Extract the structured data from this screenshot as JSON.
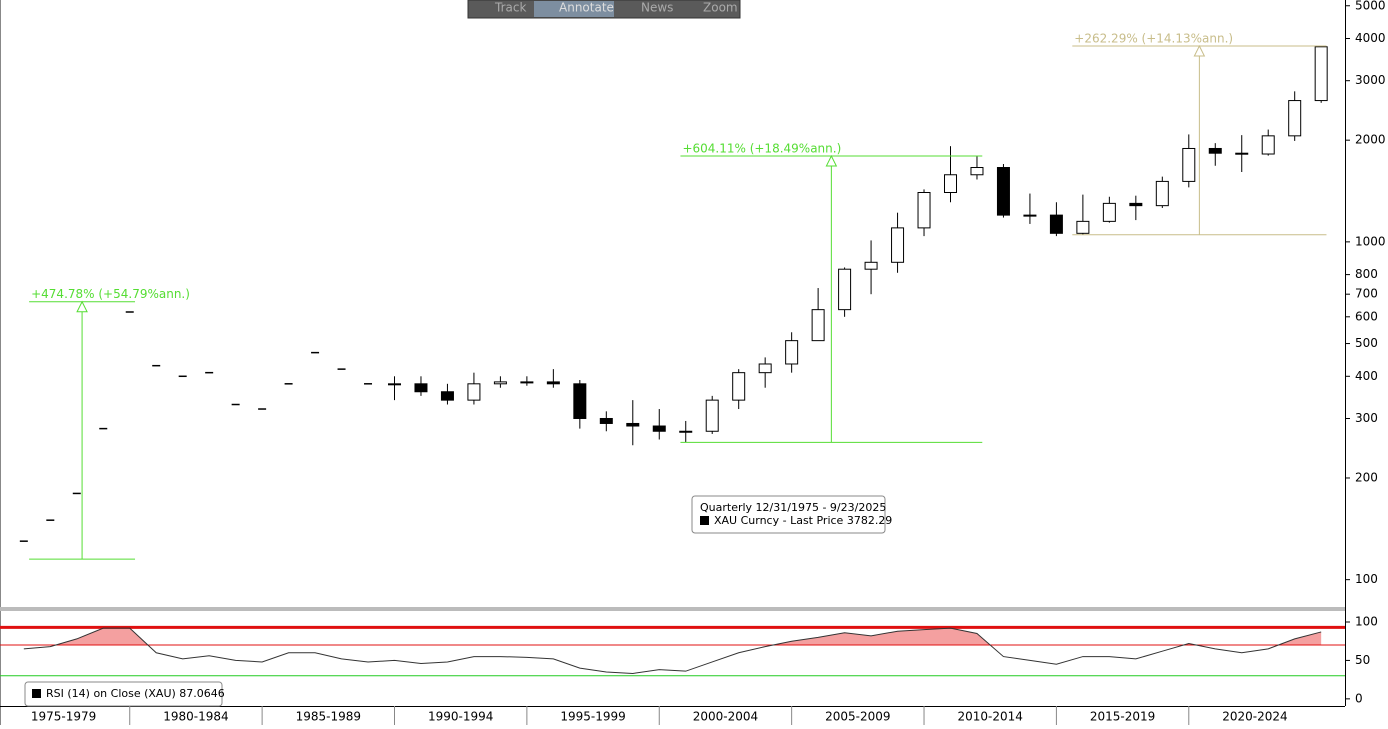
{
  "toolbar": [
    "Track",
    "Annotate",
    "News",
    "Zoom"
  ],
  "chart_data": {
    "type": "candlestick",
    "log_scale": true,
    "x": [
      1976,
      1977,
      1978,
      1979,
      1980,
      1981,
      1982,
      1983,
      1984,
      1985,
      1986,
      1987,
      1988,
      1989,
      1990,
      1991,
      1992,
      1993,
      1994,
      1995,
      1996,
      1997,
      1998,
      1999,
      2000,
      2001,
      2002,
      2003,
      2004,
      2005,
      2006,
      2007,
      2008,
      2009,
      2010,
      2011,
      2012,
      2013,
      2014,
      2015,
      2016,
      2017,
      2018,
      2019,
      2020,
      2021,
      2022,
      2023,
      2024,
      2025
    ],
    "open": [
      130,
      150,
      180,
      280,
      620,
      430,
      400,
      410,
      330,
      320,
      380,
      470,
      420,
      380,
      380,
      380,
      360,
      340,
      380,
      385,
      385,
      380,
      300,
      290,
      285,
      275,
      275,
      340,
      410,
      435,
      510,
      630,
      830,
      870,
      1100,
      1400,
      1580,
      1660,
      1200,
      1200,
      1060,
      1150,
      1300,
      1280,
      1510,
      1890,
      1830,
      1820,
      2060,
      2620
    ],
    "high": [
      130,
      150,
      180,
      280,
      620,
      430,
      400,
      410,
      330,
      320,
      380,
      470,
      420,
      380,
      400,
      400,
      380,
      410,
      400,
      400,
      420,
      390,
      315,
      340,
      320,
      295,
      350,
      420,
      455,
      540,
      730,
      840,
      1010,
      1220,
      1430,
      1920,
      1800,
      1700,
      1390,
      1310,
      1380,
      1360,
      1370,
      1560,
      2080,
      1960,
      2070,
      2150,
      2790,
      3800
    ],
    "low": [
      130,
      150,
      180,
      280,
      620,
      430,
      400,
      410,
      330,
      320,
      380,
      470,
      420,
      380,
      340,
      350,
      330,
      330,
      370,
      375,
      370,
      280,
      275,
      250,
      260,
      255,
      270,
      320,
      370,
      410,
      520,
      600,
      700,
      810,
      1040,
      1310,
      1530,
      1180,
      1130,
      1040,
      1050,
      1140,
      1160,
      1260,
      1450,
      1680,
      1610,
      1800,
      1990,
      2580
    ],
    "close": [
      130,
      150,
      180,
      280,
      620,
      430,
      400,
      410,
      330,
      320,
      380,
      470,
      420,
      380,
      380,
      360,
      340,
      380,
      385,
      385,
      380,
      300,
      290,
      285,
      275,
      275,
      340,
      410,
      435,
      510,
      630,
      830,
      870,
      1100,
      1400,
      1580,
      1660,
      1200,
      1200,
      1060,
      1150,
      1300,
      1280,
      1510,
      1890,
      1830,
      1820,
      2060,
      2620,
      3780
    ],
    "xlim": [
      1975.1,
      2025.9
    ],
    "xticks": [
      {
        "value": 1975,
        "label": "1975-1979"
      },
      {
        "value": 1980,
        "label": "1980-1984"
      },
      {
        "value": 1985,
        "label": "1985-1989"
      },
      {
        "value": 1990,
        "label": "1990-1994"
      },
      {
        "value": 1995,
        "label": "1995-1999"
      },
      {
        "value": 2000,
        "label": "2000-2004"
      },
      {
        "value": 2005,
        "label": "2005-2009"
      },
      {
        "value": 2010,
        "label": "2010-2014"
      },
      {
        "value": 2015,
        "label": "2015-2019"
      },
      {
        "value": 2020,
        "label": "2020-2024"
      }
    ],
    "ylim": [
      83,
      5200
    ],
    "yticks": [
      100,
      200,
      300,
      400,
      500,
      600,
      700,
      800,
      1000,
      2000,
      3000,
      4000,
      5000
    ],
    "legend": [
      "Quarterly 12/31/1975 - 9/23/2025",
      "XAU Curncy - Last Price 3782.29"
    ],
    "annotations": [
      {
        "label": "+474.78% (+54.79%ann.)",
        "color": "#55dd33",
        "start": 115,
        "end": 665,
        "x": 1978.2,
        "x_from": 1976.2,
        "x_to": 1980.2
      },
      {
        "label": "+604.11% (+18.49%ann.)",
        "color": "#55dd33",
        "start": 255,
        "end": 1795,
        "x": 2006.5,
        "x_from": 2000.8,
        "x_to": 2012.2
      },
      {
        "label": "+262.29% (+14.13%ann.)",
        "color": "#c8bd8a",
        "start": 1050,
        "end": 3800,
        "x": 2020.4,
        "x_from": 2015.6,
        "x_to": 2025.2
      }
    ],
    "rsi": {
      "legend": "RSI (14)  on Close (XAU) 87.0646",
      "values": [
        65,
        68,
        78,
        92,
        92,
        60,
        52,
        56,
        50,
        48,
        60,
        60,
        52,
        48,
        50,
        46,
        48,
        55,
        55,
        54,
        52,
        40,
        35,
        33,
        38,
        36,
        48,
        60,
        68,
        75,
        80,
        86,
        82,
        88,
        90,
        92,
        85,
        55,
        50,
        45,
        55,
        55,
        52,
        62,
        72,
        65,
        60,
        65,
        78,
        87.06
      ],
      "ylim": [
        -8,
        113
      ],
      "yticks": [
        0,
        50,
        100
      ],
      "levels": [
        70,
        30
      ],
      "level_colors": [
        "#e01010",
        "#22cc22"
      ],
      "peak_line": 93
    }
  }
}
